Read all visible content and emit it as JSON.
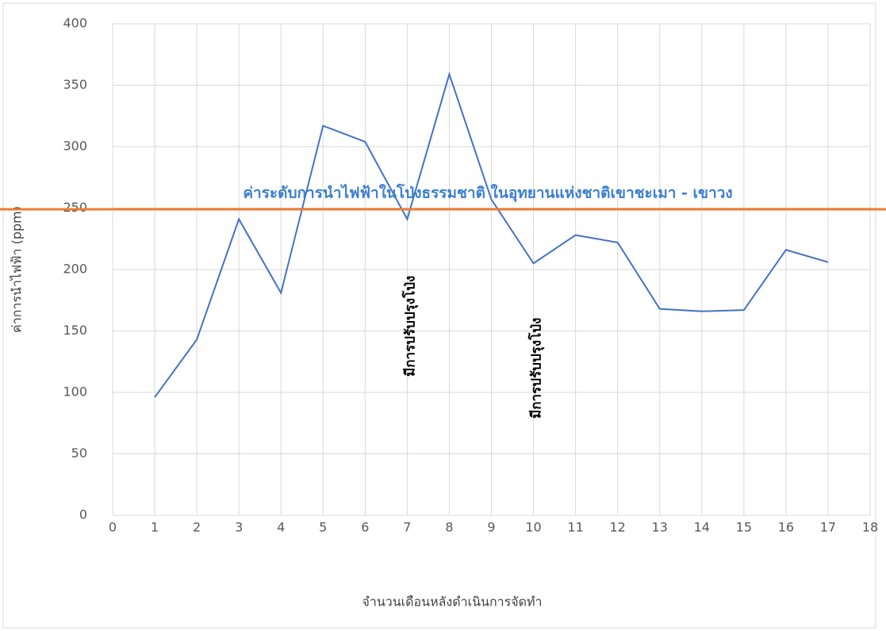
{
  "chart_data": {
    "type": "line",
    "x_label": "จำนวนเดือนหลังดำเนินการจัดทำ",
    "y_label": "ค่าการนำไฟฟ้า (ppm)",
    "x": [
      1,
      2,
      3,
      4,
      5,
      6,
      7,
      8,
      9,
      10,
      11,
      12,
      13,
      14,
      15,
      16,
      17
    ],
    "series": [
      {
        "name": "ค่าการนำไฟฟ้า",
        "color": "#4472c4",
        "values": [
          96,
          143,
          241,
          181,
          317,
          304,
          241,
          359,
          257,
          205,
          228,
          222,
          168,
          166,
          167,
          216,
          206
        ]
      }
    ],
    "xlim": [
      0,
      18
    ],
    "xticks": [
      0,
      1,
      2,
      3,
      4,
      5,
      6,
      7,
      8,
      9,
      10,
      11,
      12,
      13,
      14,
      15,
      16,
      17,
      18
    ],
    "ylim": [
      0,
      400
    ],
    "yticks": [
      0,
      50,
      100,
      150,
      200,
      250,
      300,
      350,
      400
    ],
    "grid": true,
    "reference_line": {
      "value": 249,
      "label": "ค่าระดับการนำไฟฟ้าในโป่งธรรมชาติ ในอุทยานแห่งชาติเขาชะเมา - เขาวง",
      "color": "#ed7d31"
    },
    "annotations": [
      {
        "text": "มีการปรับปรุงโป่ง",
        "x": 7
      },
      {
        "text": "มีการปรับปรุงโป่ง",
        "x": 10
      }
    ]
  }
}
